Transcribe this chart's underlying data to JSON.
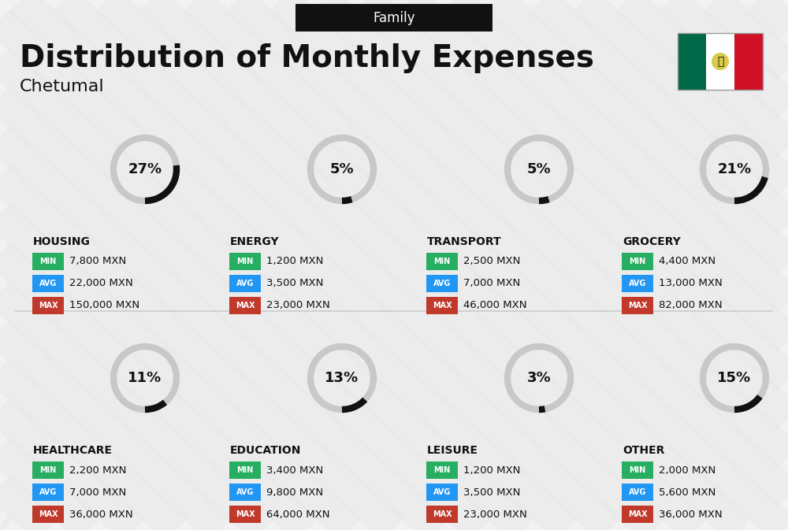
{
  "title": "Distribution of Monthly Expenses",
  "subtitle": "Chetumal",
  "tag": "Family",
  "bg_color": "#f2f2f2",
  "categories": [
    {
      "name": "HOUSING",
      "pct": 27,
      "min_val": "7,800 MXN",
      "avg_val": "22,000 MXN",
      "max_val": "150,000 MXN",
      "emoji": "🏢",
      "row": 0,
      "col": 0
    },
    {
      "name": "ENERGY",
      "pct": 5,
      "min_val": "1,200 MXN",
      "avg_val": "3,500 MXN",
      "max_val": "23,000 MXN",
      "emoji": "⚡",
      "row": 0,
      "col": 1
    },
    {
      "name": "TRANSPORT",
      "pct": 5,
      "min_val": "2,500 MXN",
      "avg_val": "7,000 MXN",
      "max_val": "46,000 MXN",
      "emoji": "🚌",
      "row": 0,
      "col": 2
    },
    {
      "name": "GROCERY",
      "pct": 21,
      "min_val": "4,400 MXN",
      "avg_val": "13,000 MXN",
      "max_val": "82,000 MXN",
      "emoji": "🛒",
      "row": 0,
      "col": 3
    },
    {
      "name": "HEALTHCARE",
      "pct": 11,
      "min_val": "2,200 MXN",
      "avg_val": "7,000 MXN",
      "max_val": "36,000 MXN",
      "emoji": "❤️",
      "row": 1,
      "col": 0
    },
    {
      "name": "EDUCATION",
      "pct": 13,
      "min_val": "3,400 MXN",
      "avg_val": "9,800 MXN",
      "max_val": "64,000 MXN",
      "emoji": "🎓",
      "row": 1,
      "col": 1
    },
    {
      "name": "LEISURE",
      "pct": 3,
      "min_val": "1,200 MXN",
      "avg_val": "3,500 MXN",
      "max_val": "23,000 MXN",
      "emoji": "🛍️",
      "row": 1,
      "col": 2
    },
    {
      "name": "OTHER",
      "pct": 15,
      "min_val": "2,000 MXN",
      "avg_val": "5,600 MXN",
      "max_val": "36,000 MXN",
      "emoji": "👜",
      "row": 1,
      "col": 3
    }
  ],
  "min_color": "#27ae60",
  "avg_color": "#2196f3",
  "max_color": "#c0392b",
  "circle_bg": "#c8c8c8",
  "circle_fill": "#111111",
  "label_color": "#111111",
  "tag_bg": "#111111",
  "tag_text": "#ffffff",
  "stripe_color": "#e8e8e8",
  "flag_green": "#006847",
  "flag_white": "#ffffff",
  "flag_red": "#ce1126"
}
